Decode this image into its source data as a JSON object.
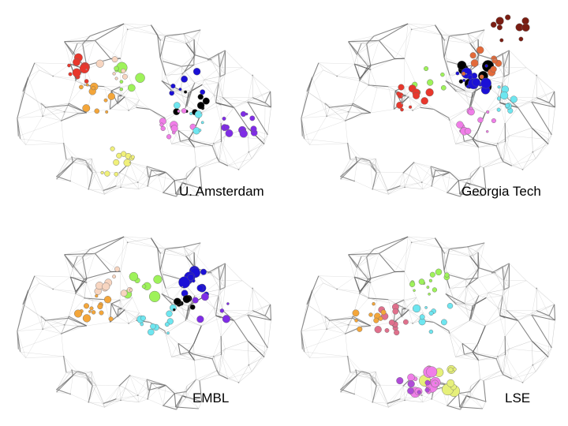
{
  "panels": [
    {
      "label": "U. Amsterdam",
      "highlight_colors": [
        "#e8372c",
        "#9ef25a",
        "#1b10d6",
        "#000000",
        "#f07ee8",
        "#7f2ce6",
        "#f4a63a",
        "#f7d5c0",
        "#6ee6f0",
        "#f0f07a"
      ]
    },
    {
      "label": "Georgia Tech",
      "highlight_colors": [
        "#000000",
        "#1b10d6",
        "#f07ee8",
        "#6ee6f0",
        "#9ef25a",
        "#7a1d12",
        "#e36a3a",
        "#e8372c"
      ]
    },
    {
      "label": "EMBL",
      "highlight_colors": [
        "#9ef25a",
        "#1b10d6",
        "#f7d5c0",
        "#f4a63a",
        "#6ee6f0",
        "#000000",
        "#7f2ce6"
      ]
    },
    {
      "label": "LSE",
      "highlight_colors": [
        "#e6f07a",
        "#f07ee8",
        "#e0708c",
        "#6ee6f0",
        "#9ef25a",
        "#b04cd8",
        "#f4a63a"
      ]
    }
  ]
}
